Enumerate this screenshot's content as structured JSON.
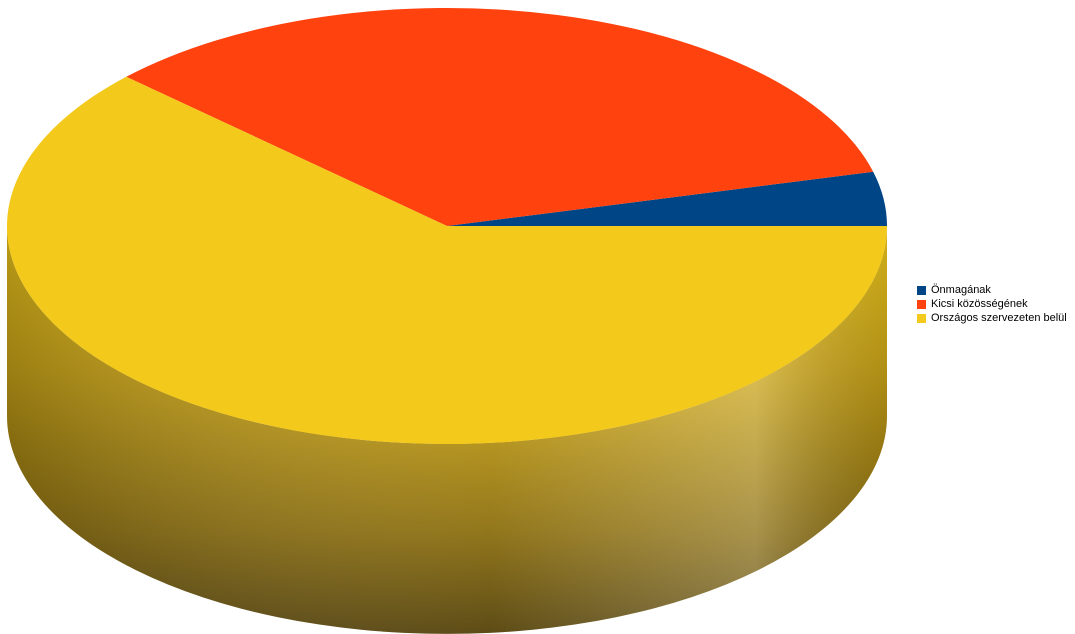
{
  "chart_data": {
    "type": "pie",
    "style": "3d",
    "title": "",
    "legend_position": "right",
    "slices": [
      {
        "label": "Önmagának",
        "value": 4,
        "color": "#004586"
      },
      {
        "label": "Kicsi közösségének",
        "value": 34,
        "color": "#ff420e"
      },
      {
        "label": "Országos szervezeten belül",
        "value": 62,
        "color": "#f3c91b"
      }
    ]
  }
}
